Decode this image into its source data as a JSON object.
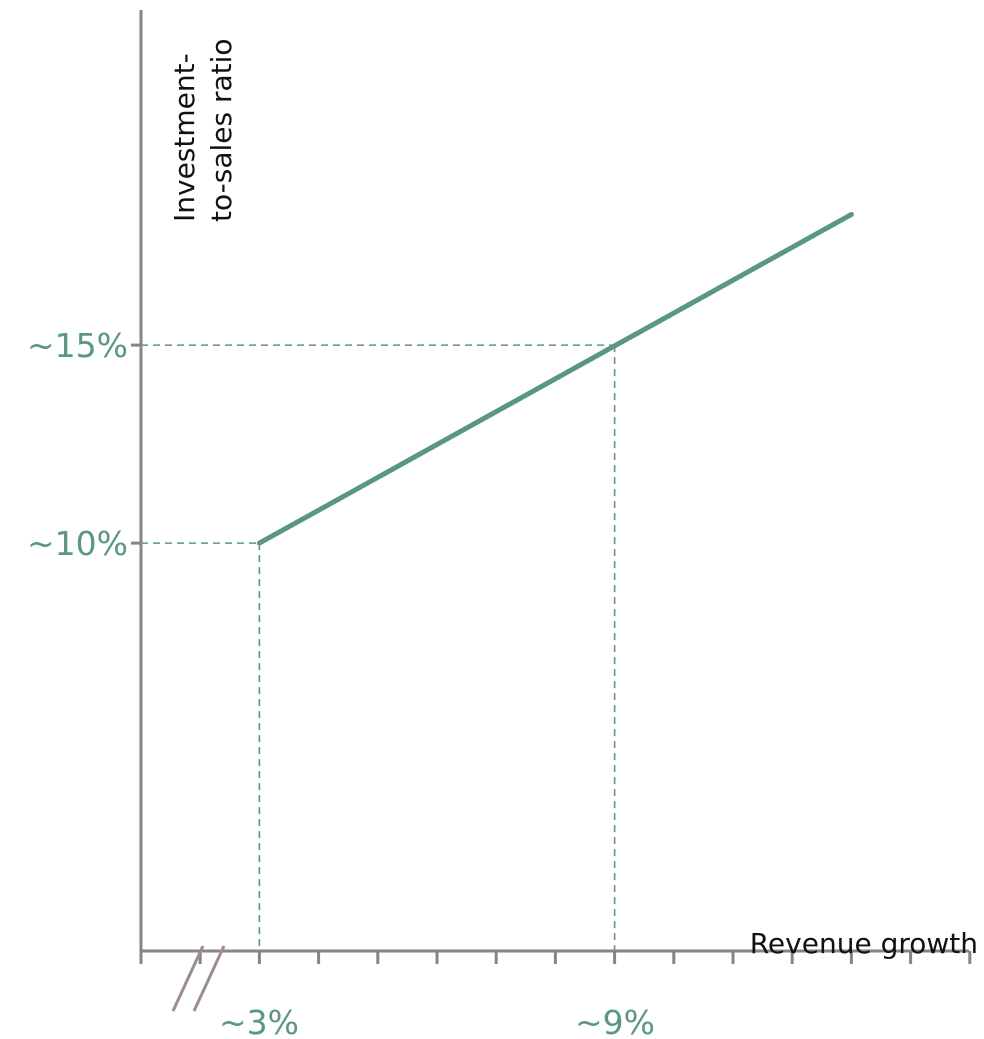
{
  "chart_data": {
    "type": "line",
    "xlabel": "Revenue growth",
    "ylabel_lines": [
      "Investment-",
      "to-sales ratio"
    ],
    "x_tick_labels": [
      "~3%",
      "~9%"
    ],
    "y_tick_labels": [
      "~15%",
      "~10%"
    ],
    "series": [
      {
        "x": [
          3,
          13
        ],
        "y": [
          10,
          18.3
        ]
      }
    ],
    "reference_points": [
      {
        "x": 3,
        "y": 10,
        "xlabel": "~3%",
        "ylabel": "~10%"
      },
      {
        "x": 9,
        "y": 15,
        "xlabel": "~9%",
        "ylabel": "~15%"
      }
    ],
    "x_ticks": [
      1,
      2,
      3,
      4,
      5,
      6,
      7,
      8,
      9,
      10,
      11,
      12,
      13,
      14,
      15
    ],
    "xlim": [
      1,
      15
    ],
    "ylim": [
      -0.3,
      27
    ],
    "x_axis_break": true,
    "grid": false,
    "colors": {
      "line": "#5a9683",
      "guide": "#5a9683",
      "label": "#5a9683",
      "axis": "#858585",
      "break_mark": "#9c8c8f",
      "text": "#111111"
    }
  }
}
